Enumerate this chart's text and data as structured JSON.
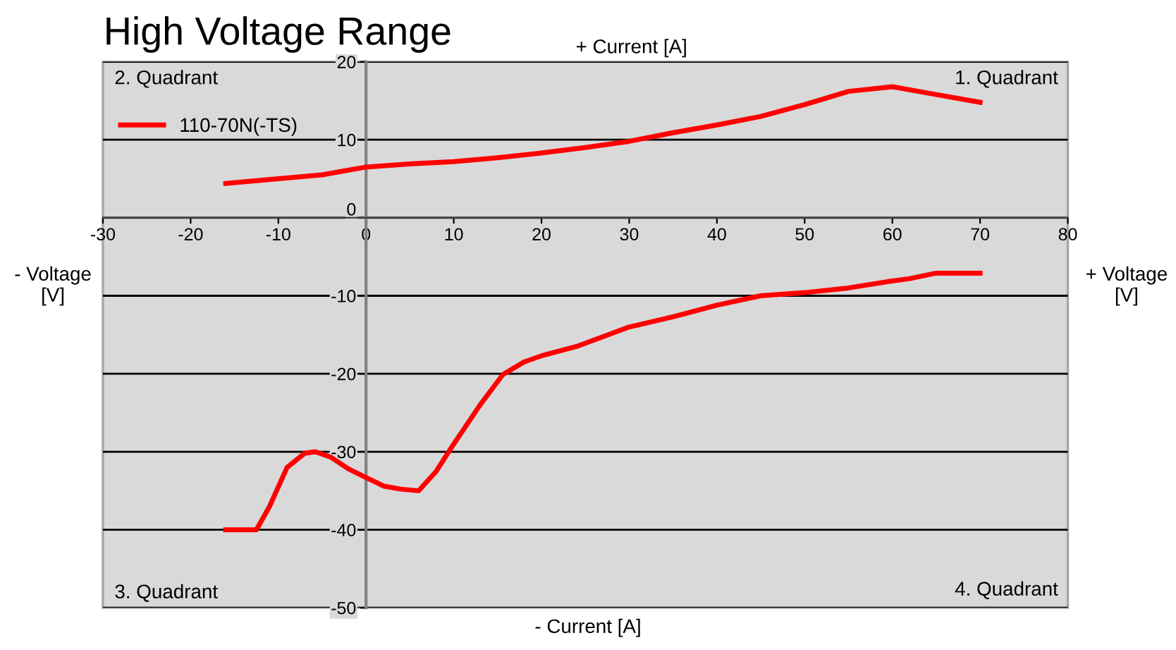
{
  "chart_data": {
    "type": "line",
    "title": "High Voltage Range",
    "xlabel": "- Current [A]",
    "ylabel": "- Voltage\n[V]",
    "annotations": [
      "+ Current [A]",
      "+ Voltage\n[V]",
      "2. Quadrant",
      "1. Quadrant",
      "3. Quadrant",
      "4. Quadrant"
    ],
    "series": [
      {
        "name": "110-70N(-TS)",
        "color": "#ff0000",
        "x": [
          -16,
          -10,
          -5,
          0,
          5,
          10,
          15,
          20,
          25,
          30,
          35,
          40,
          45,
          50,
          55,
          60,
          65,
          70
        ],
        "values": [
          4.4,
          5.0,
          5.5,
          6.5,
          6.9,
          7.2,
          7.7,
          8.3,
          9.0,
          9.8,
          10.9,
          11.9,
          13.0,
          14.5,
          16.2,
          16.8,
          15.8,
          14.8
        ]
      },
      {
        "color": "#ff0000",
        "x": [
          -16,
          -12.5,
          -11,
          -9,
          -7,
          -5.8,
          -4,
          -2,
          0,
          2,
          4,
          6,
          8,
          10,
          13,
          15.6,
          18,
          20,
          24,
          30,
          35,
          40,
          45,
          50,
          55,
          60,
          62,
          65,
          70
        ],
        "values": [
          -40,
          -40,
          -37,
          -32,
          -30.2,
          -30.0,
          -30.7,
          -32.2,
          -33.3,
          -34.4,
          -34.8,
          -35.0,
          -32.5,
          -29,
          -24,
          -20.1,
          -18.5,
          -17.7,
          -16.5,
          -14,
          -12.7,
          -11.2,
          -10,
          -9.6,
          -9.0,
          -8.1,
          -7.8,
          -7.1,
          -7.1
        ]
      }
    ],
    "xlim": [
      -30,
      80
    ],
    "ylim": [
      -50,
      20
    ],
    "xticks": [
      -30,
      -20,
      -10,
      0,
      10,
      20,
      30,
      40,
      50,
      60,
      70,
      80
    ],
    "yticks": [
      -50,
      -40,
      -30,
      -20,
      -10,
      0,
      10,
      20
    ],
    "grid": "y",
    "legend": "top left",
    "marker": "none",
    "line_style": "solid"
  }
}
